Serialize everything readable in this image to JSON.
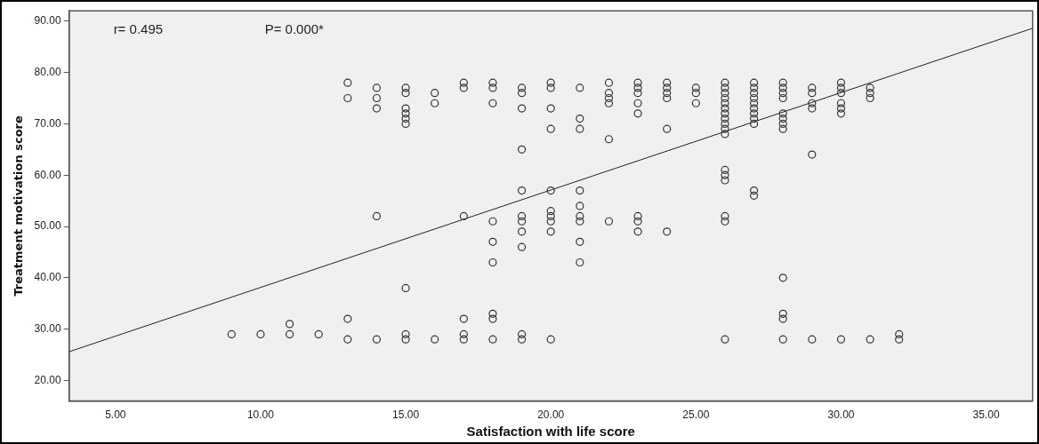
{
  "chart_data": {
    "type": "scatter",
    "xlabel": "Satisfaction with life score",
    "ylabel": "Treatment motivation score",
    "annotations": [
      "r= 0.495",
      "P= 0.000*"
    ],
    "marker": "circle",
    "grid": false,
    "legend": false,
    "xlim": [
      3.4,
      36.6
    ],
    "ylim": [
      16,
      92
    ],
    "xticks": [
      {
        "value": 5,
        "label": "5.00"
      },
      {
        "value": 10,
        "label": "10.00"
      },
      {
        "value": 15,
        "label": "15.00"
      },
      {
        "value": 20,
        "label": "20.00"
      },
      {
        "value": 25,
        "label": "25.00"
      },
      {
        "value": 30,
        "label": "30.00"
      },
      {
        "value": 35,
        "label": "35.00"
      }
    ],
    "yticks": [
      {
        "value": 20,
        "label": "20.00"
      },
      {
        "value": 30,
        "label": "30.00"
      },
      {
        "value": 40,
        "label": "40.00"
      },
      {
        "value": 50,
        "label": "50.00"
      },
      {
        "value": 60,
        "label": "60.00"
      },
      {
        "value": 70,
        "label": "70.00"
      },
      {
        "value": 80,
        "label": "80.00"
      },
      {
        "value": 90,
        "label": "90.00"
      }
    ],
    "series": [
      {
        "type": "scatter",
        "color": "#333333",
        "x": [
          9,
          10,
          11,
          11,
          12,
          13,
          13,
          13,
          13,
          14,
          14,
          14,
          14,
          14,
          15,
          15,
          15,
          15,
          15,
          15,
          15,
          15,
          15,
          16,
          16,
          16,
          17,
          17,
          17,
          17,
          17,
          17,
          18,
          18,
          18,
          18,
          18,
          18,
          18,
          18,
          18,
          19,
          19,
          19,
          19,
          19,
          19,
          19,
          19,
          19,
          19,
          19,
          20,
          20,
          20,
          20,
          20,
          20,
          20,
          20,
          20,
          20,
          21,
          21,
          21,
          21,
          21,
          21,
          21,
          21,
          21,
          22,
          22,
          22,
          22,
          22,
          22,
          23,
          23,
          23,
          23,
          23,
          23,
          23,
          23,
          24,
          24,
          24,
          24,
          24,
          24,
          25,
          25,
          25,
          26,
          26,
          26,
          26,
          26,
          26,
          26,
          26,
          26,
          26,
          26,
          26,
          26,
          26,
          26,
          26,
          26,
          27,
          27,
          27,
          27,
          27,
          27,
          27,
          27,
          27,
          27,
          27,
          28,
          28,
          28,
          28,
          28,
          28,
          28,
          28,
          28,
          28,
          28,
          28,
          29,
          29,
          29,
          29,
          29,
          29,
          30,
          30,
          30,
          30,
          30,
          30,
          30,
          31,
          31,
          31,
          31,
          32,
          32
        ],
        "values": [
          29,
          29,
          31,
          29,
          29,
          78,
          75,
          32,
          28,
          77,
          75,
          73,
          52,
          28,
          77,
          76,
          73,
          72,
          71,
          70,
          38,
          29,
          28,
          76,
          74,
          28,
          78,
          77,
          52,
          32,
          29,
          28,
          78,
          77,
          74,
          51,
          47,
          43,
          33,
          32,
          28,
          77,
          76,
          73,
          65,
          57,
          52,
          51,
          49,
          46,
          29,
          28,
          78,
          77,
          73,
          69,
          57,
          53,
          52,
          51,
          49,
          28,
          77,
          71,
          69,
          57,
          54,
          52,
          51,
          47,
          43,
          78,
          76,
          75,
          74,
          67,
          51,
          78,
          77,
          76,
          74,
          72,
          52,
          51,
          49,
          78,
          77,
          76,
          75,
          69,
          49,
          77,
          76,
          74,
          78,
          77,
          76,
          75,
          74,
          73,
          72,
          71,
          70,
          69,
          68,
          61,
          60,
          59,
          52,
          51,
          28,
          78,
          77,
          76,
          75,
          74,
          73,
          72,
          71,
          70,
          57,
          56,
          78,
          77,
          76,
          75,
          72,
          71,
          70,
          69,
          40,
          33,
          32,
          28,
          77,
          76,
          74,
          73,
          64,
          28,
          78,
          77,
          76,
          74,
          73,
          72,
          28,
          77,
          76,
          75,
          28,
          29,
          28
        ]
      },
      {
        "type": "line",
        "color": "#222222",
        "x": [
          3.4,
          36.6
        ],
        "values": [
          25.6,
          88.6
        ],
        "marker": "none"
      }
    ]
  }
}
